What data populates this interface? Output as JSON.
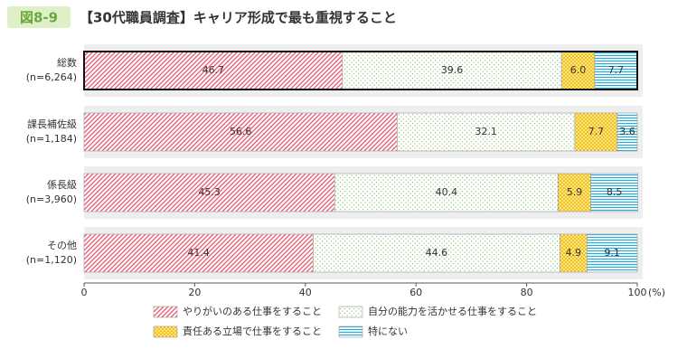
{
  "chart_data": {
    "type": "stacked-bar-horizontal",
    "figure_label": "図8-9",
    "title": "【30代職員調査】キャリア形成で最も重視すること",
    "categories": [
      "総数",
      "課長補佐級",
      "係長級",
      "その他"
    ],
    "category_notes": [
      "(n=6,264)",
      "(n=1,184)",
      "(n=3,960)",
      "(n=1,120)"
    ],
    "highlight_first": true,
    "series": [
      {
        "name": "やりがいのある仕事をすること",
        "color": "#e8546b",
        "pattern": "diagonal",
        "values": [
          46.7,
          56.6,
          45.3,
          41.4
        ]
      },
      {
        "name": "自分の能力を活かせる仕事をすること",
        "color": "#8fc67a",
        "pattern": "dots",
        "values": [
          39.6,
          32.1,
          40.4,
          44.6
        ]
      },
      {
        "name": "責任ある立場で仕事をすること",
        "color": "#f2b800",
        "pattern": "cross",
        "values": [
          6.0,
          7.7,
          5.9,
          4.9
        ],
        "value_labels": [
          "6.0",
          "7.7",
          "5.9",
          "4.9"
        ]
      },
      {
        "name": "特にない",
        "color": "#29a9d8",
        "pattern": "hlines",
        "values": [
          7.7,
          3.6,
          8.5,
          9.1
        ]
      }
    ],
    "xlim": [
      0,
      100
    ],
    "xticks": [
      0,
      20,
      40,
      60,
      80,
      100
    ],
    "x_unit": "(%)"
  }
}
